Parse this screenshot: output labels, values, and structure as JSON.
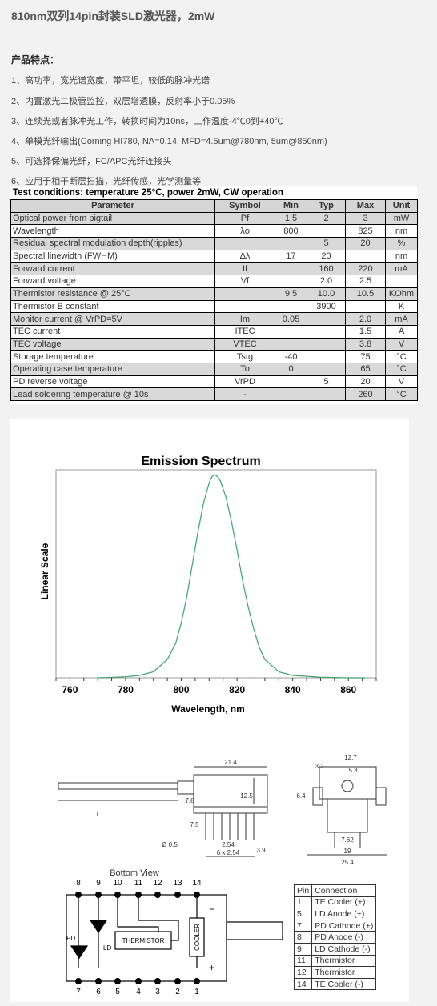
{
  "title": "810nm双列14pin封装SLD激光器，2mW",
  "features_heading": "产品特点：",
  "features": [
    "1、高功率，宽光谱宽度，带平坦，较低的脉冲光谱",
    "2、内置激光二极管监控，双层增透膜，反射率小于0.05%",
    "3、连续光或者脉冲光工作，转换时间为10ns，工作温度-4℃0到+40℃",
    "4、单模光纤输出(Corning HI780, NA=0.14, MFD=4.5um@780nm, 5um@850nm)",
    "5、可选择保偏光纤，FC/APC光纤连接头",
    "6、应用于相干断层扫描，光纤传感，光学测量等"
  ],
  "spec": {
    "conditions": "Test conditions: temperature 25°C, power 2mW, CW operation",
    "headers": [
      "Parameter",
      "Symbol",
      "Min",
      "Typ",
      "Max",
      "Unit"
    ],
    "rows": [
      {
        "p": "Optical power from pigtail",
        "s": "Pf",
        "min": "1.5",
        "typ": "2",
        "max": "3",
        "u": "mW",
        "shade": true
      },
      {
        "p": "Wavelength",
        "s": "λo",
        "min": "800",
        "typ": "",
        "max": "825",
        "u": "nm",
        "shade": false
      },
      {
        "p": "Residual spectral modulation depth(ripples)",
        "s": "",
        "min": "",
        "typ": "5",
        "max": "20",
        "u": "%",
        "shade": true
      },
      {
        "p": "Spectral linewidth (FWHM)",
        "s": "Δλ",
        "min": "17",
        "typ": "20",
        "max": "",
        "u": "nm",
        "shade": false
      },
      {
        "p": "Forward current",
        "s": "If",
        "min": "",
        "typ": "160",
        "max": "220",
        "u": "mA",
        "shade": true
      },
      {
        "p": "Forward voltage",
        "s": "Vf",
        "min": "",
        "typ": "2.0",
        "max": "2.5",
        "u": "",
        "shade": false
      },
      {
        "p": "Thermistor resistance @ 25°C",
        "s": "",
        "min": "9.5",
        "typ": "10.0",
        "max": "10.5",
        "u": "KOhm",
        "shade": true
      },
      {
        "p": "Thermistor B constant",
        "s": "",
        "min": "",
        "typ": "3900",
        "max": "",
        "u": "K",
        "shade": false
      },
      {
        "p": "Monitor current @ VrPD=5V",
        "s": "Im",
        "min": "0.05",
        "typ": "",
        "max": "2.0",
        "u": "mA",
        "shade": true
      },
      {
        "p": "TEC current",
        "s": "ITEC",
        "min": "",
        "typ": "",
        "max": "1.5",
        "u": "A",
        "shade": false
      },
      {
        "p": "TEC voltage",
        "s": "VTEC",
        "min": "",
        "typ": "",
        "max": "3.8",
        "u": "V",
        "shade": true
      },
      {
        "p": "Storage temperature",
        "s": "Tstg",
        "min": "-40",
        "typ": "",
        "max": "75",
        "u": "°C",
        "shade": false
      },
      {
        "p": "Operating case temperature",
        "s": "To",
        "min": "0",
        "typ": "",
        "max": "65",
        "u": "°C",
        "shade": true
      },
      {
        "p": "PD reverse voltage",
        "s": "VrPD",
        "min": "",
        "typ": "5",
        "max": "20",
        "u": "V",
        "shade": false
      },
      {
        "p": "Lead soldering temperature @ 10s",
        "s": "-",
        "min": "",
        "typ": "",
        "max": "260",
        "u": "°C",
        "shade": true
      }
    ]
  },
  "chart_data": {
    "type": "line",
    "title": "Emission Spectrum",
    "xlabel": "Wavelength, nm",
    "ylabel": "Linear Scale",
    "xlim": [
      755,
      870
    ],
    "ylim": [
      0,
      1
    ],
    "xticks": [
      760,
      780,
      800,
      820,
      840,
      860
    ],
    "grid": false,
    "series": [
      {
        "x": [
          770,
          780,
          785,
          790,
          795,
          798,
          800,
          802,
          804,
          806,
          808,
          810,
          811,
          812,
          813,
          814,
          816,
          818,
          820,
          822,
          824,
          826,
          828,
          830,
          835,
          840,
          850,
          860,
          866
        ],
        "y": [
          0.0,
          0.005,
          0.012,
          0.03,
          0.09,
          0.17,
          0.27,
          0.4,
          0.56,
          0.72,
          0.86,
          0.96,
          0.99,
          1.0,
          0.99,
          0.97,
          0.89,
          0.77,
          0.63,
          0.48,
          0.35,
          0.24,
          0.15,
          0.09,
          0.03,
          0.012,
          0.003,
          0.0,
          0.0
        ]
      }
    ]
  },
  "mech": {
    "dims_side": [
      "21.4",
      "12.5",
      "7.8",
      "7.5",
      "L",
      "Ø 0.5",
      "2.54",
      "6 x 2.54",
      "3.9"
    ],
    "dims_end": [
      "12.7",
      "3.2",
      "5.3",
      "6.4",
      "7.62",
      "19",
      "25.4"
    ],
    "bottom_view": "Bottom View",
    "pins_top": [
      "8",
      "9",
      "10",
      "11",
      "12",
      "13",
      "14"
    ],
    "pins_bottom": [
      "7",
      "6",
      "5",
      "4",
      "3",
      "2",
      "1"
    ],
    "labels": {
      "pd": "PD",
      "ld": "LD",
      "thermistor": "THERMISTOR",
      "cooler": "COOLER",
      "minus": "−",
      "plus": "+"
    }
  },
  "pins": {
    "headers": [
      "Pin",
      "Connection"
    ],
    "rows": [
      [
        "1",
        "TE Cooler (+)"
      ],
      [
        "5",
        "LD Anode (+)"
      ],
      [
        "7",
        "PD Cathode (+)"
      ],
      [
        "8",
        "PD Anode (-)"
      ],
      [
        "9",
        "LD Cathode (-)"
      ],
      [
        "11",
        "Thermistor"
      ],
      [
        "12",
        "Thermistor"
      ],
      [
        "14",
        "TE Cooler (-)"
      ]
    ]
  }
}
